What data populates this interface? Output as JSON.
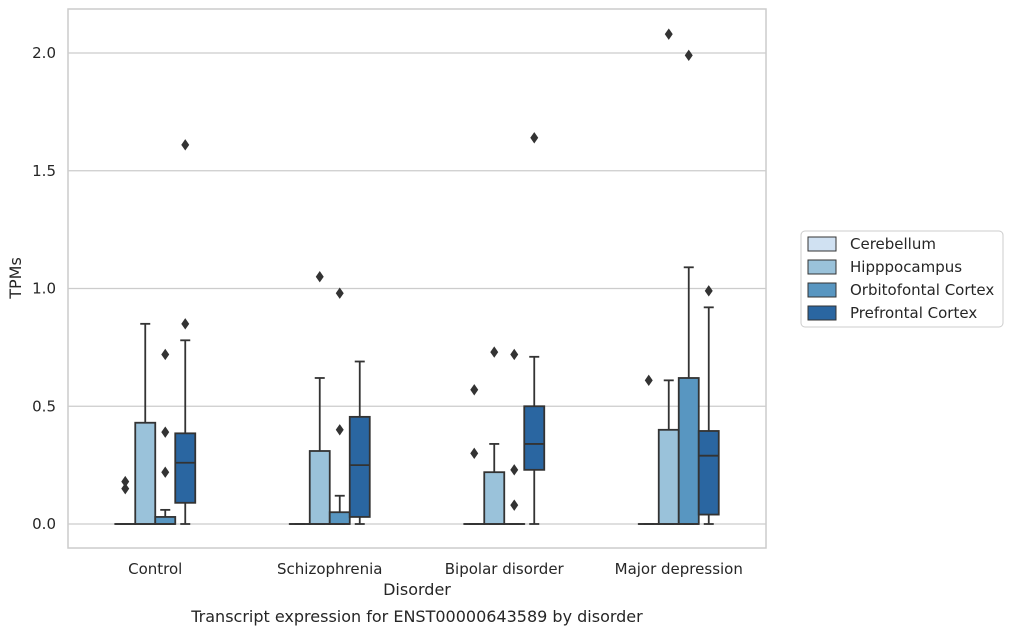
{
  "chart_data": {
    "type": "box",
    "title": "",
    "caption": "Transcript expression for ENST00000643589 by disorder",
    "xlabel": "Disorder",
    "ylabel": "TPMs",
    "ylim": [
      -0.1,
      2.2
    ],
    "yticks": [
      0.0,
      0.5,
      1.0,
      1.5,
      2.0
    ],
    "ytick_labels": [
      "0.0",
      "0.5",
      "1.0",
      "1.5",
      "2.0"
    ],
    "grid": "horizontal",
    "legend_position": "right",
    "categories": [
      "Control",
      "Schizophrenia",
      "Bipolar disorder",
      "Major depression"
    ],
    "series": [
      {
        "name": "Cerebellum",
        "color": "#d0e1f2",
        "boxes": [
          {
            "q1": 0,
            "median": 0,
            "q3": 0,
            "whisker_low": 0,
            "whisker_high": 0,
            "fliers": [
              0.15,
              0.18
            ]
          },
          {
            "q1": 0,
            "median": 0,
            "q3": 0,
            "whisker_low": 0,
            "whisker_high": 0,
            "fliers": []
          },
          {
            "q1": 0,
            "median": 0,
            "q3": 0,
            "whisker_low": 0,
            "whisker_high": 0,
            "fliers": [
              0.3,
              0.57
            ]
          },
          {
            "q1": 0,
            "median": 0,
            "q3": 0,
            "whisker_low": 0,
            "whisker_high": 0,
            "fliers": [
              0.61
            ]
          }
        ]
      },
      {
        "name": "Hipppocampus",
        "color": "#9ac2da",
        "boxes": [
          {
            "q1": 0,
            "median": 0,
            "q3": 0.43,
            "whisker_low": 0,
            "whisker_high": 0.85,
            "fliers": []
          },
          {
            "q1": 0,
            "median": 0,
            "q3": 0.31,
            "whisker_low": 0,
            "whisker_high": 0.62,
            "fliers": [
              1.05
            ]
          },
          {
            "q1": 0,
            "median": 0,
            "q3": 0.22,
            "whisker_low": 0,
            "whisker_high": 0.34,
            "fliers": [
              0.73
            ]
          },
          {
            "q1": 0,
            "median": 0,
            "q3": 0.4,
            "whisker_low": 0,
            "whisker_high": 0.61,
            "fliers": [
              2.08
            ]
          }
        ]
      },
      {
        "name": "Orbitofontal Cortex",
        "color": "#5896c1",
        "boxes": [
          {
            "q1": 0,
            "median": 0,
            "q3": 0.03,
            "whisker_low": 0,
            "whisker_high": 0.06,
            "fliers": [
              0.22,
              0.39,
              0.72
            ]
          },
          {
            "q1": 0,
            "median": 0,
            "q3": 0.05,
            "whisker_low": 0,
            "whisker_high": 0.12,
            "fliers": [
              0.4,
              0.98
            ]
          },
          {
            "q1": 0,
            "median": 0,
            "q3": 0,
            "whisker_low": 0,
            "whisker_high": 0,
            "fliers": [
              0.08,
              0.23,
              0.72
            ]
          },
          {
            "q1": 0,
            "median": 0,
            "q3": 0.62,
            "whisker_low": 0,
            "whisker_high": 1.09,
            "fliers": [
              1.99
            ]
          }
        ]
      },
      {
        "name": "Prefrontal Cortex",
        "color": "#2a66a1",
        "boxes": [
          {
            "q1": 0.09,
            "median": 0.26,
            "q3": 0.385,
            "whisker_low": 0,
            "whisker_high": 0.78,
            "fliers": [
              0.85,
              1.61
            ]
          },
          {
            "q1": 0.03,
            "median": 0.25,
            "q3": 0.455,
            "whisker_low": 0,
            "whisker_high": 0.69,
            "fliers": []
          },
          {
            "q1": 0.23,
            "median": 0.34,
            "q3": 0.5,
            "whisker_low": 0,
            "whisker_high": 0.71,
            "fliers": [
              1.64
            ]
          },
          {
            "q1": 0.04,
            "median": 0.29,
            "q3": 0.395,
            "whisker_low": 0,
            "whisker_high": 0.92,
            "fliers": [
              0.99
            ]
          }
        ]
      }
    ]
  }
}
